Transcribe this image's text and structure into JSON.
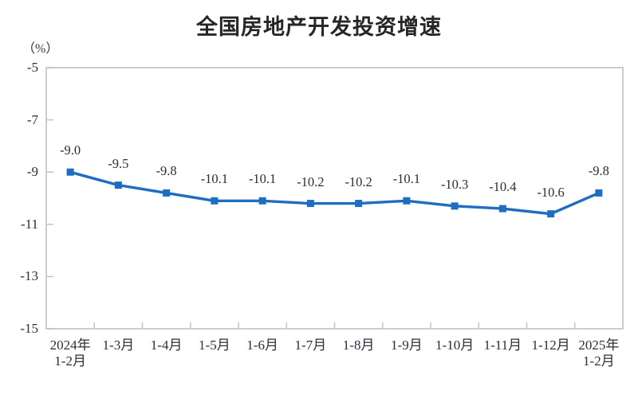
{
  "page": {
    "background": "#ffffff"
  },
  "chart": {
    "title": "全国房地产开发投资增速",
    "unit": "（%）"
  },
  "chart_data": {
    "type": "line",
    "title": "全国房地产开发投资增速",
    "unit_label": "（%）",
    "categories": [
      "2024年\n1-2月",
      "1-3月",
      "1-4月",
      "1-5月",
      "1-6月",
      "1-7月",
      "1-8月",
      "1-9月",
      "1-10月",
      "1-11月",
      "1-12月",
      "2025年\n1-2月"
    ],
    "values": [
      -9.0,
      -9.5,
      -9.8,
      -10.1,
      -10.1,
      -10.2,
      -10.2,
      -10.1,
      -10.3,
      -10.4,
      -10.6,
      -9.8
    ],
    "data_labels": [
      "-9.0",
      "-9.5",
      "-9.8",
      "-10.1",
      "-10.1",
      "-10.2",
      "-10.2",
      "-10.1",
      "-10.3",
      "-10.4",
      "-10.6",
      "-9.8"
    ],
    "ylim": [
      -15,
      -5
    ],
    "yticks": [
      -5,
      -7,
      -9,
      -11,
      -13,
      -15
    ],
    "grid": false,
    "legend": false,
    "line_color": "#1F6DC1",
    "marker": "square",
    "frame_color": "#cdcdcd",
    "tick_color": "#c3c3c3"
  }
}
